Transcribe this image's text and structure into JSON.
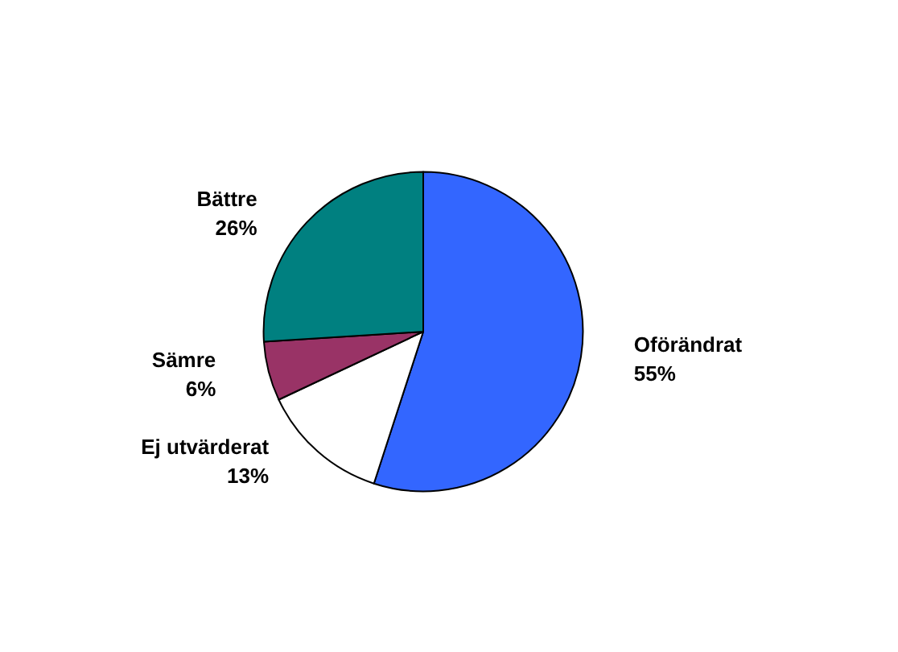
{
  "chart_data": {
    "type": "pie",
    "categories": [
      "Oförändrat",
      "Ej utvärderat",
      "Sämre",
      "Bättre"
    ],
    "values": [
      55,
      13,
      6,
      26
    ],
    "colors": [
      "#3366ff",
      "#ffffff",
      "#993366",
      "#008080"
    ],
    "value_labels": [
      "55%",
      "13%",
      "6%",
      "26%"
    ],
    "legend": false
  }
}
